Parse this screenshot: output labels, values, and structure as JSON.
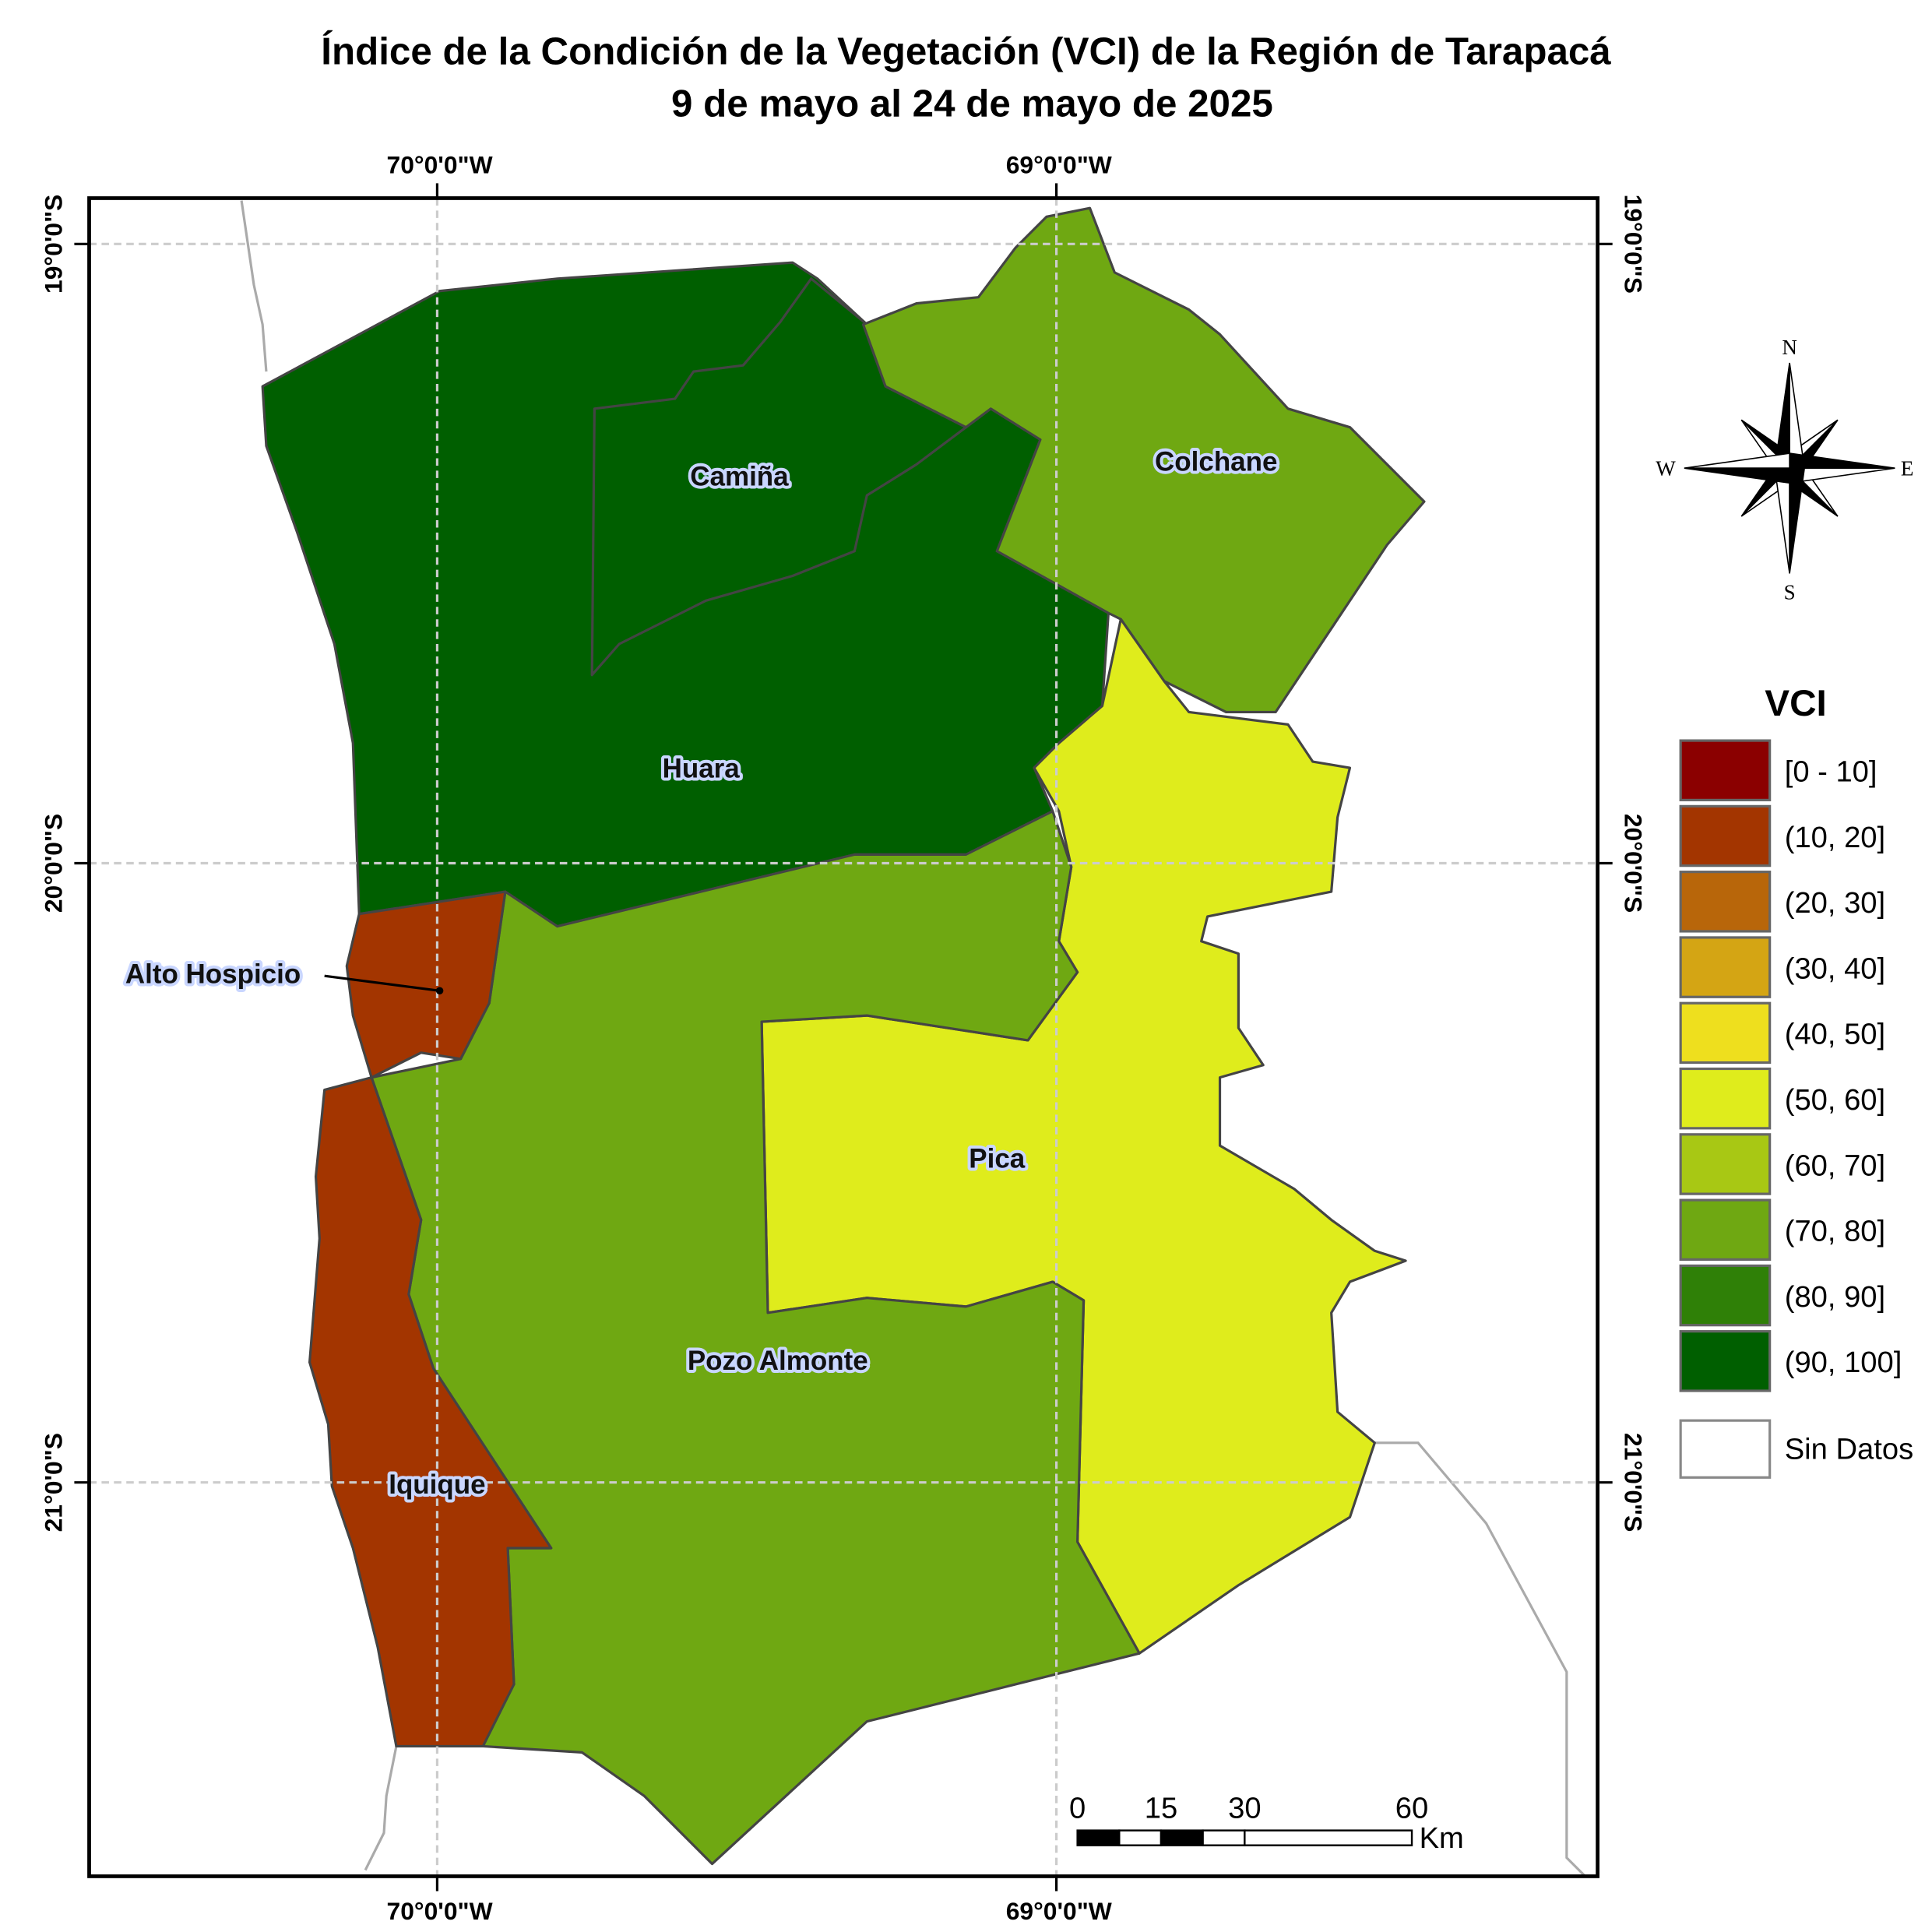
{
  "title": [
    "Índice de la Condición de la Vegetación (VCI) de la Región de Tarapacá",
    "9 de mayo al 24 de mayo de 2025"
  ],
  "graticule": {
    "lon": [
      "70°0'0\"W",
      "69°0'0\"W"
    ],
    "lat": [
      "19°0'0\"S",
      "20°0'0\"S",
      "21°0'0\"S"
    ]
  },
  "regions": [
    {
      "name": "Huara",
      "color": "#005f00"
    },
    {
      "name": "Camiña",
      "color": "#005f00"
    },
    {
      "name": "Colchane",
      "color": "#6fa812"
    },
    {
      "name": "Pica",
      "color": "#dfec1c"
    },
    {
      "name": "Pozo Almonte",
      "color": "#6fa812"
    },
    {
      "name": "Alto Hospicio",
      "color": "#a33500"
    },
    {
      "name": "Iquique",
      "color": "#a33500"
    }
  ],
  "legend": {
    "title": "VCI",
    "items": [
      {
        "label": "[0 - 10]",
        "color": "#8b0000"
      },
      {
        "label": "(10, 20]",
        "color": "#a33500"
      },
      {
        "label": "(20, 30]",
        "color": "#b8660a"
      },
      {
        "label": "(30, 40]",
        "color": "#d4a514"
      },
      {
        "label": "(40, 50]",
        "color": "#eedf1e"
      },
      {
        "label": "(50, 60]",
        "color": "#dfec1c"
      },
      {
        "label": "(60, 70]",
        "color": "#a8c814"
      },
      {
        "label": "(70, 80]",
        "color": "#6fa812"
      },
      {
        "label": "(80, 90]",
        "color": "#2f8007"
      },
      {
        "label": "(90, 100]",
        "color": "#005f00"
      }
    ],
    "no_data": "Sin Datos"
  },
  "scale_bar": {
    "ticks": [
      0,
      15,
      30,
      60
    ],
    "unit": "Km"
  },
  "compass": {
    "north": "N",
    "south": "S",
    "east": "E",
    "west": "W"
  }
}
